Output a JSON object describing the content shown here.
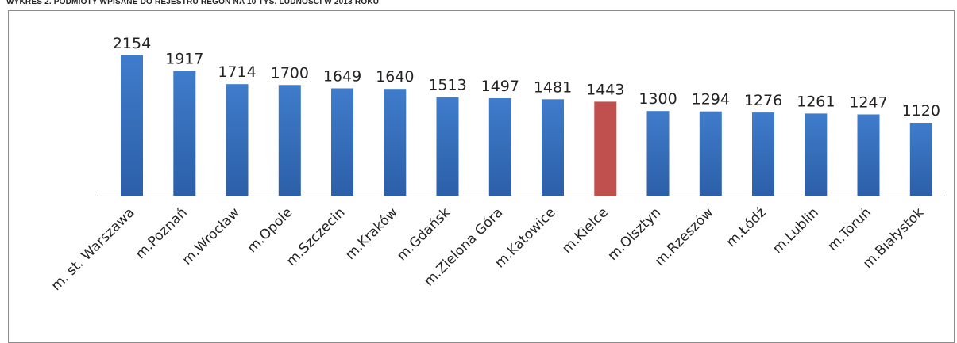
{
  "header": {
    "title": "WYKRES 2. PODMIOTY WPISANE DO REJESTRU REGON NA 10 TYS. LUDNOŚCI W 2013 ROKU"
  },
  "colors": {
    "bar": "#3b76c4",
    "bar_dark": "#2a5ea6",
    "bar_highlight": "#c0504d",
    "axis": "#8c8c8c",
    "text": "#222222"
  },
  "chart_data": {
    "type": "bar",
    "categories": [
      "m. st. Warszawa",
      "m.Poznań",
      "m.Wrocław",
      "m.Opole",
      "m.Szczecin",
      "m.Kraków",
      "m.Gdańsk",
      "m.Zielona Góra",
      "m.Katowice",
      "m.Kielce",
      "m.Olsztyn",
      "m.Rzeszów",
      "m.Łódź",
      "m.Lublin",
      "m.Toruń",
      "m.Białystok"
    ],
    "values": [
      2154,
      1917,
      1714,
      1700,
      1649,
      1640,
      1513,
      1497,
      1481,
      1443,
      1300,
      1294,
      1276,
      1261,
      1247,
      1120
    ],
    "highlight_category": "m.Kielce",
    "data_labels": true,
    "ylim": [
      0,
      2154
    ],
    "grid": false,
    "legend": "none"
  }
}
